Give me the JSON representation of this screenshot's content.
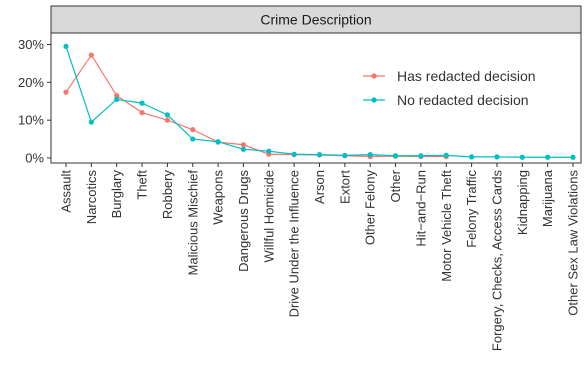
{
  "chart_data": {
    "type": "line",
    "title": "",
    "facet_label": "Crime Description",
    "xlabel": "",
    "ylabel": "",
    "ylim": [
      0,
      0.3
    ],
    "y_ticks": [
      0,
      0.1,
      0.2,
      0.3
    ],
    "y_tick_labels": [
      "0%",
      "10%",
      "20%",
      "30%"
    ],
    "grid": false,
    "legend_position": "right",
    "categories": [
      "Assault",
      "Narcotics",
      "Burglary",
      "Theft",
      "Robbery",
      "Malicious Mischief",
      "Weapons",
      "Dangerous Drugs",
      "Willful Homicide",
      "Drive Under the Influence",
      "Arson",
      "Extort",
      "Other Felony",
      "Other",
      "Hit−and−Run",
      "Motor Vehicle Theft",
      "Felony Traffic",
      "Forgery, Checks, Access Cards",
      "Kidnapping",
      "Marijuana",
      "Other Sex Law Violations"
    ],
    "series": [
      {
        "name": "Has redacted decision",
        "color": "#F8766D",
        "values": [
          0.174,
          0.272,
          0.165,
          0.12,
          0.1,
          0.075,
          0.042,
          0.035,
          0.01,
          0.009,
          0.008,
          0.006,
          0.004,
          0.005,
          0.004,
          0.004,
          null,
          null,
          null,
          null,
          null
        ]
      },
      {
        "name": "No redacted decision",
        "color": "#00BFC4",
        "values": [
          0.295,
          0.095,
          0.155,
          0.145,
          0.114,
          0.05,
          0.043,
          0.023,
          0.018,
          0.01,
          0.009,
          0.007,
          0.009,
          0.006,
          0.006,
          0.007,
          0.003,
          0.003,
          0.002,
          0.002,
          0.002
        ]
      }
    ]
  }
}
